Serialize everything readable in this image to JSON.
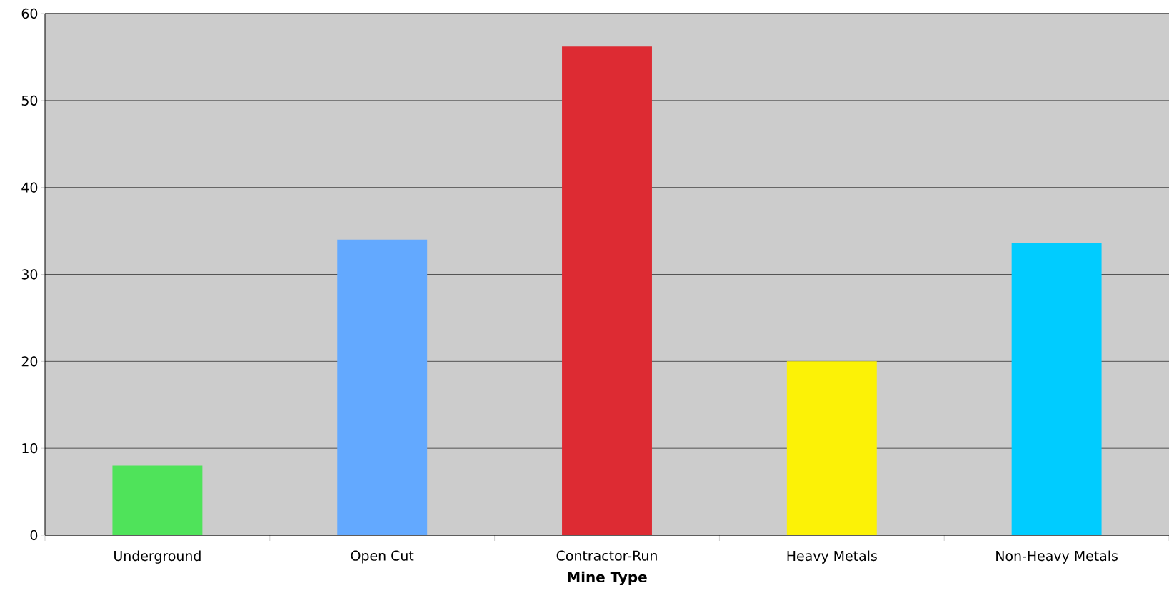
{
  "chart_data": {
    "type": "bar",
    "xlabel": "**Mine Type**",
    "categories": [
      "Underground",
      "Open Cut",
      "Contractor-Run",
      "Heavy Metals",
      "Non-Heavy Metals"
    ],
    "values": [
      8,
      34,
      56.2,
      20,
      33.6
    ],
    "colors": [
      "#4fe35a",
      "#63a9ff",
      "#dd2b33",
      "#fcf206",
      "#00ccff"
    ],
    "ylim": [
      0,
      60
    ],
    "yticks": [
      0,
      10,
      20,
      30,
      40,
      50,
      60
    ],
    "grid": "y"
  }
}
